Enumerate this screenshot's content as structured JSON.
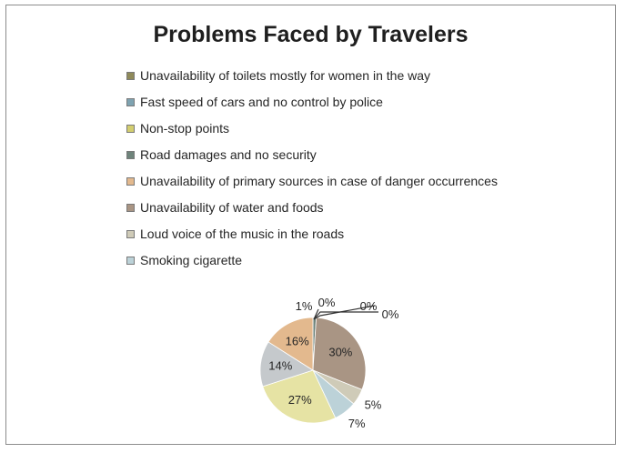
{
  "chart_data": {
    "type": "pie",
    "title": "Problems Faced by Travelers",
    "legend_position": "top",
    "slices": [
      {
        "label": "Unavailability of toilets mostly for women in the way",
        "value": 0,
        "display": "0%",
        "color": "#8f8a5a"
      },
      {
        "label": "Fast speed of cars and no control by police",
        "value": 0,
        "display": "0%",
        "color": "#7fa3b1"
      },
      {
        "label": "Non-stop points",
        "value": 0,
        "display": "0%",
        "color": "#d3ce6f"
      },
      {
        "label": "Road damages and no security",
        "value": 1,
        "display": "1%",
        "color": "#6f847b"
      },
      {
        "label": "Unavailability of primary sources in case of danger occurrences",
        "value": 16,
        "display": "16%",
        "color": "#e3b98e"
      },
      {
        "label": "Unavailability of water and foods",
        "value": 30,
        "display": "30%",
        "color": "#a99584"
      },
      {
        "label": "Loud voice of the music in the roads",
        "value": 5,
        "display": "5%",
        "color": "#cfcbb8"
      },
      {
        "label": "Smoking cigarette",
        "value": 7,
        "display": "7%",
        "color": "#bcd2d8"
      },
      {
        "label": "",
        "value": 27,
        "display": "27%",
        "color": "#e6e3a4"
      },
      {
        "label": "",
        "value": 14,
        "display": "14%",
        "color": "#c5c9cc"
      }
    ]
  }
}
